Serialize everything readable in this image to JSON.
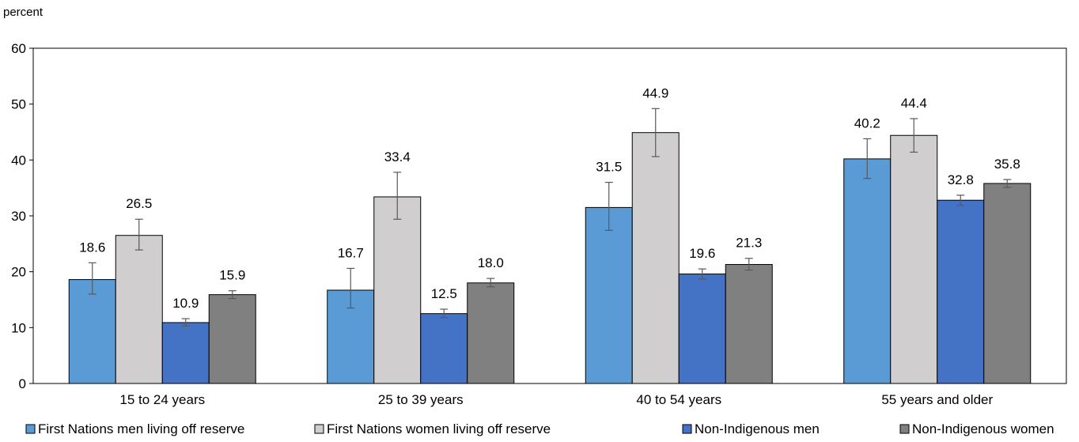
{
  "chart_data": {
    "type": "bar",
    "y_unit_label": "percent",
    "ylim": [
      0,
      60
    ],
    "yticks": [
      0,
      10,
      20,
      30,
      40,
      50,
      60
    ],
    "grid": false,
    "legend_position": "bottom",
    "categories": [
      "15 to 24 years",
      "25 to 39 years",
      "40 to 54 years",
      "55 years and older"
    ],
    "series": [
      {
        "name": "First Nations men living off reserve",
        "color": "#5b9bd5",
        "values": [
          18.6,
          16.7,
          31.5,
          40.2
        ],
        "labels": [
          "18.6",
          "16.7",
          "31.5",
          "40.2"
        ],
        "err_low": [
          16.0,
          13.5,
          27.4,
          36.7
        ],
        "err_high": [
          21.6,
          20.6,
          36.0,
          43.8
        ]
      },
      {
        "name": "First Nations women living off reserve",
        "color": "#d0cece",
        "values": [
          26.5,
          33.4,
          44.9,
          44.4
        ],
        "labels": [
          "26.5",
          "33.4",
          "44.9",
          "44.4"
        ],
        "err_low": [
          23.9,
          29.4,
          40.6,
          41.4
        ],
        "err_high": [
          29.4,
          37.8,
          49.2,
          47.4
        ]
      },
      {
        "name": "Non-Indigenous men",
        "color": "#4472c4",
        "values": [
          10.9,
          12.5,
          19.6,
          32.8
        ],
        "labels": [
          "10.9",
          "12.5",
          "19.6",
          "32.8"
        ],
        "err_low": [
          10.3,
          11.8,
          18.7,
          31.9
        ],
        "err_high": [
          11.6,
          13.3,
          20.5,
          33.7
        ]
      },
      {
        "name": "Non-Indigenous women",
        "color": "#808080",
        "values": [
          15.9,
          18.0,
          21.3,
          35.8
        ],
        "labels": [
          "15.9",
          "18.0",
          "21.3",
          "35.8"
        ],
        "err_low": [
          15.2,
          17.3,
          20.3,
          35.1
        ],
        "err_high": [
          16.6,
          18.8,
          22.4,
          36.5
        ]
      }
    ]
  }
}
